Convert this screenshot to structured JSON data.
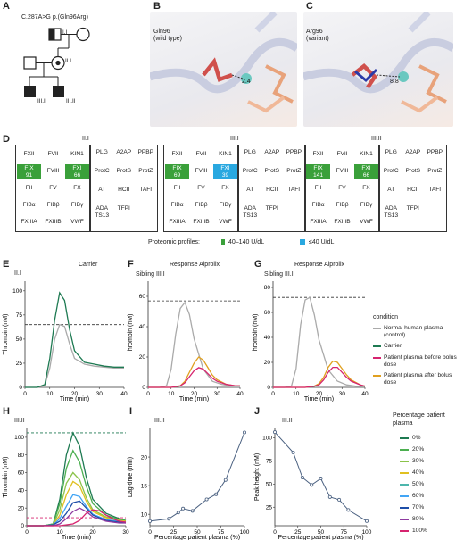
{
  "panels": {
    "A": {
      "label": "A",
      "variant": "C.287A>G  p.(Gln96Arg)",
      "individuals": [
        "I.I",
        "II.I",
        "III.I",
        "III.II"
      ]
    },
    "B": {
      "label": "B",
      "title": "Gln96",
      "subtitle": "(wild type)",
      "distance": "2.4"
    },
    "C": {
      "label": "C",
      "title": "Arg96",
      "subtitle": "(variant)",
      "distance": "8.8"
    },
    "D": {
      "label": "D",
      "groups": [
        {
          "title": "II.I",
          "fix": "FIX\n91",
          "fxi": "FXI\n66"
        },
        {
          "title": "III.I",
          "fix": "FIX\n69",
          "fxi": "FXI\n39"
        },
        {
          "title": "III.II",
          "fix": "FIX\n141",
          "fxi": "FXI\n66"
        }
      ],
      "left_cells": [
        "FXII",
        "FVII",
        "KIN1",
        "FVIII",
        "FII",
        "FV",
        "FX",
        "FIBα",
        "FIBβ",
        "FIBγ",
        "FXIIIA",
        "FXIIIB",
        "VWF"
      ],
      "right_cells": [
        "PLG",
        "A2AP",
        "PPBP",
        "ProtC",
        "ProtS",
        "ProtZ",
        "AT",
        "HCII",
        "TAFI",
        "ADA\nTS13",
        "TFPI"
      ],
      "legend_title": "Proteomic profiles:",
      "legend_green": "40–140 U/dL",
      "legend_blue": "≤40 U/dL"
    },
    "E": {
      "label": "E",
      "title": "Carrier",
      "sub": "II.I",
      "ylabel": "Thrombin (nM)",
      "xlabel": "Time (min)"
    },
    "F": {
      "label": "F",
      "title": "Response Alprolix",
      "sub": "Sibling III.I",
      "ylabel": "Thrombin (nM)",
      "xlabel": "Time (min)"
    },
    "G": {
      "label": "G",
      "title": "Response Alprolix",
      "sub": "Sibling III.II",
      "ylabel": "Thrombin (nM)",
      "xlabel": "Time (min)"
    },
    "H": {
      "label": "H",
      "sub": "III.II",
      "ylabel": "Thrombin (nM)",
      "xlabel": "Time (min)"
    },
    "I": {
      "label": "I",
      "sub": "III.II",
      "ylabel": "Lag-time (min)",
      "xlabel": "Percentage patient plasma (%)"
    },
    "J": {
      "label": "J",
      "sub": "III.II",
      "ylabel": "Peak height (nM)",
      "xlabel": "Percentage patient plasma (%)"
    }
  },
  "legend_condition": {
    "title": "condition",
    "items": [
      {
        "label": "Normal human plasma (control)",
        "color": "#aaaaaa"
      },
      {
        "label": "Carrier",
        "color": "#1e7a52"
      },
      {
        "label": "Patient plasma before bolus dose",
        "color": "#d6246f"
      },
      {
        "label": "Patient plasma after bolus dose",
        "color": "#e0a020"
      }
    ]
  },
  "legend_pct": {
    "title": "Percentage patient plasma",
    "items": [
      {
        "label": "0%",
        "color": "#1e7a52"
      },
      {
        "label": "20%",
        "color": "#4caf50"
      },
      {
        "label": "30%",
        "color": "#8bc34a"
      },
      {
        "label": "40%",
        "color": "#e0c020"
      },
      {
        "label": "50%",
        "color": "#4db6ac"
      },
      {
        "label": "60%",
        "color": "#42a5f5"
      },
      {
        "label": "70%",
        "color": "#1e4ea8"
      },
      {
        "label": "80%",
        "color": "#8e3aa0"
      },
      {
        "label": "100%",
        "color": "#d6246f"
      }
    ]
  },
  "colors": {
    "green": "#3aa03a",
    "blue": "#29a8e0",
    "ref_line": "#333333"
  },
  "chart_data": [
    {
      "panel": "E",
      "type": "line",
      "xlim": [
        0,
        40
      ],
      "ylim": [
        0,
        110
      ],
      "yticks": [
        0,
        25,
        50,
        75,
        100
      ],
      "xticks": [
        0,
        10,
        20,
        30,
        40
      ],
      "ref_y": 65,
      "series": [
        {
          "color": "#aaaaaa",
          "x": [
            0,
            5,
            8,
            10,
            12,
            14,
            16,
            18,
            20,
            24,
            28,
            32,
            36,
            40
          ],
          "y": [
            0,
            0,
            2,
            20,
            50,
            65,
            63,
            45,
            30,
            24,
            22,
            21,
            20,
            20
          ]
        },
        {
          "color": "#1e7a52",
          "x": [
            0,
            5,
            8,
            10,
            12,
            14,
            16,
            18,
            20,
            24,
            28,
            32,
            36,
            40
          ],
          "y": [
            0,
            0,
            3,
            30,
            70,
            98,
            90,
            60,
            38,
            26,
            24,
            22,
            21,
            21
          ]
        }
      ]
    },
    {
      "panel": "F",
      "type": "line",
      "xlim": [
        0,
        40
      ],
      "ylim": [
        0,
        70
      ],
      "yticks": [
        0,
        20,
        40,
        60
      ],
      "xticks": [
        0,
        10,
        20,
        30,
        40
      ],
      "ref_y": 57,
      "series": [
        {
          "color": "#aaaaaa",
          "x": [
            0,
            5,
            8,
            10,
            12,
            14,
            16,
            18,
            20,
            24,
            28,
            32,
            36,
            40
          ],
          "y": [
            0,
            0,
            1,
            12,
            35,
            52,
            56,
            48,
            32,
            12,
            4,
            2,
            1,
            1
          ]
        },
        {
          "color": "#e0a020",
          "x": [
            0,
            10,
            14,
            16,
            18,
            20,
            22,
            24,
            26,
            28,
            30,
            34,
            38,
            40
          ],
          "y": [
            0,
            0,
            1,
            4,
            10,
            16,
            20,
            18,
            13,
            8,
            5,
            2,
            1,
            1
          ]
        },
        {
          "color": "#d6246f",
          "x": [
            0,
            10,
            14,
            16,
            18,
            20,
            22,
            24,
            26,
            28,
            30,
            34,
            38,
            40
          ],
          "y": [
            0,
            0,
            1,
            3,
            7,
            11,
            13,
            12,
            9,
            6,
            4,
            2,
            1,
            1
          ]
        }
      ]
    },
    {
      "panel": "G",
      "type": "line",
      "xlim": [
        0,
        40
      ],
      "ylim": [
        0,
        85
      ],
      "yticks": [
        0,
        20,
        40,
        60,
        80
      ],
      "xticks": [
        0,
        10,
        20,
        30,
        40
      ],
      "ref_y": 72,
      "series": [
        {
          "color": "#aaaaaa",
          "x": [
            0,
            5,
            8,
            10,
            12,
            14,
            16,
            18,
            20,
            24,
            28,
            32,
            36,
            40
          ],
          "y": [
            0,
            0,
            1,
            15,
            50,
            70,
            72,
            58,
            38,
            14,
            5,
            2,
            1,
            1
          ]
        },
        {
          "color": "#e0a020",
          "x": [
            0,
            14,
            18,
            20,
            22,
            24,
            26,
            28,
            30,
            32,
            34,
            38,
            40
          ],
          "y": [
            0,
            0,
            1,
            3,
            8,
            16,
            21,
            20,
            15,
            10,
            6,
            2,
            1
          ]
        },
        {
          "color": "#d6246f",
          "x": [
            0,
            14,
            18,
            20,
            22,
            24,
            26,
            28,
            30,
            32,
            34,
            38,
            40
          ],
          "y": [
            0,
            0,
            1,
            2,
            6,
            12,
            16,
            16,
            12,
            8,
            5,
            2,
            1
          ]
        }
      ]
    },
    {
      "panel": "H",
      "type": "line",
      "xlim": [
        0,
        30
      ],
      "ylim": [
        0,
        110
      ],
      "yticks": [
        0,
        20,
        40,
        60,
        80,
        100
      ],
      "xticks": [
        0,
        10,
        20,
        30
      ],
      "ref_y": [
        105,
        9
      ],
      "series": [
        {
          "color": "#1e7a52",
          "x": [
            0,
            5,
            8,
            10,
            12,
            14,
            16,
            18,
            20,
            24,
            28,
            30
          ],
          "y": [
            0,
            0,
            2,
            30,
            80,
            105,
            90,
            55,
            30,
            14,
            8,
            6
          ]
        },
        {
          "color": "#4caf50",
          "x": [
            0,
            5,
            8,
            10,
            12,
            14,
            16,
            18,
            20,
            24,
            28,
            30
          ],
          "y": [
            0,
            0,
            2,
            25,
            65,
            85,
            72,
            45,
            25,
            12,
            7,
            6
          ]
        },
        {
          "color": "#8bc34a",
          "x": [
            0,
            5,
            8,
            10,
            12,
            14,
            16,
            18,
            20,
            24,
            28,
            30
          ],
          "y": [
            0,
            0,
            1,
            18,
            48,
            60,
            52,
            32,
            18,
            10,
            6,
            5
          ]
        },
        {
          "color": "#e0c020",
          "x": [
            0,
            5,
            8,
            10,
            12,
            14,
            16,
            18,
            20,
            24,
            28,
            30
          ],
          "y": [
            0,
            0,
            1,
            12,
            35,
            50,
            45,
            28,
            16,
            9,
            6,
            5
          ]
        },
        {
          "color": "#42a5f5",
          "x": [
            0,
            5,
            8,
            10,
            12,
            14,
            16,
            18,
            20,
            24,
            28,
            30
          ],
          "y": [
            0,
            0,
            1,
            8,
            22,
            35,
            33,
            22,
            13,
            7,
            5,
            4
          ]
        },
        {
          "color": "#1e4ea8",
          "x": [
            0,
            5,
            8,
            10,
            12,
            14,
            16,
            18,
            20,
            24,
            28,
            30
          ],
          "y": [
            0,
            0,
            1,
            5,
            14,
            26,
            28,
            20,
            12,
            6,
            4,
            3
          ]
        },
        {
          "color": "#8e3aa0",
          "x": [
            0,
            5,
            8,
            10,
            12,
            14,
            16,
            18,
            20,
            24,
            28,
            30
          ],
          "y": [
            0,
            0,
            0,
            2,
            8,
            16,
            20,
            16,
            10,
            5,
            3,
            3
          ]
        },
        {
          "color": "#d6246f",
          "x": [
            0,
            5,
            10,
            14,
            16,
            18,
            20,
            22,
            24,
            26,
            28,
            30
          ],
          "y": [
            0,
            0,
            0,
            2,
            6,
            14,
            18,
            17,
            12,
            8,
            5,
            4
          ]
        }
      ]
    },
    {
      "panel": "I",
      "type": "line",
      "xlim": [
        0,
        100
      ],
      "ylim": [
        8,
        25
      ],
      "yticks": [
        10,
        15,
        20
      ],
      "xticks": [
        0,
        25,
        50,
        75,
        100
      ],
      "series": [
        {
          "color": "#4a6080",
          "x": [
            0,
            20,
            30,
            35,
            45,
            60,
            70,
            80,
            100
          ],
          "y": [
            8.8,
            9.2,
            10.3,
            11.0,
            10.6,
            12.6,
            13.5,
            16,
            24.3
          ]
        }
      ]
    },
    {
      "panel": "J",
      "type": "line",
      "xlim": [
        0,
        100
      ],
      "ylim": [
        5,
        110
      ],
      "yticks": [
        25,
        50,
        75,
        100
      ],
      "xticks": [
        0,
        25,
        50,
        75,
        100
      ],
      "series": [
        {
          "color": "#4a6080",
          "x": [
            0,
            20,
            30,
            40,
            50,
            60,
            70,
            80,
            100
          ],
          "y": [
            106,
            84,
            57,
            49,
            56,
            36,
            33,
            22,
            10
          ]
        }
      ]
    }
  ]
}
